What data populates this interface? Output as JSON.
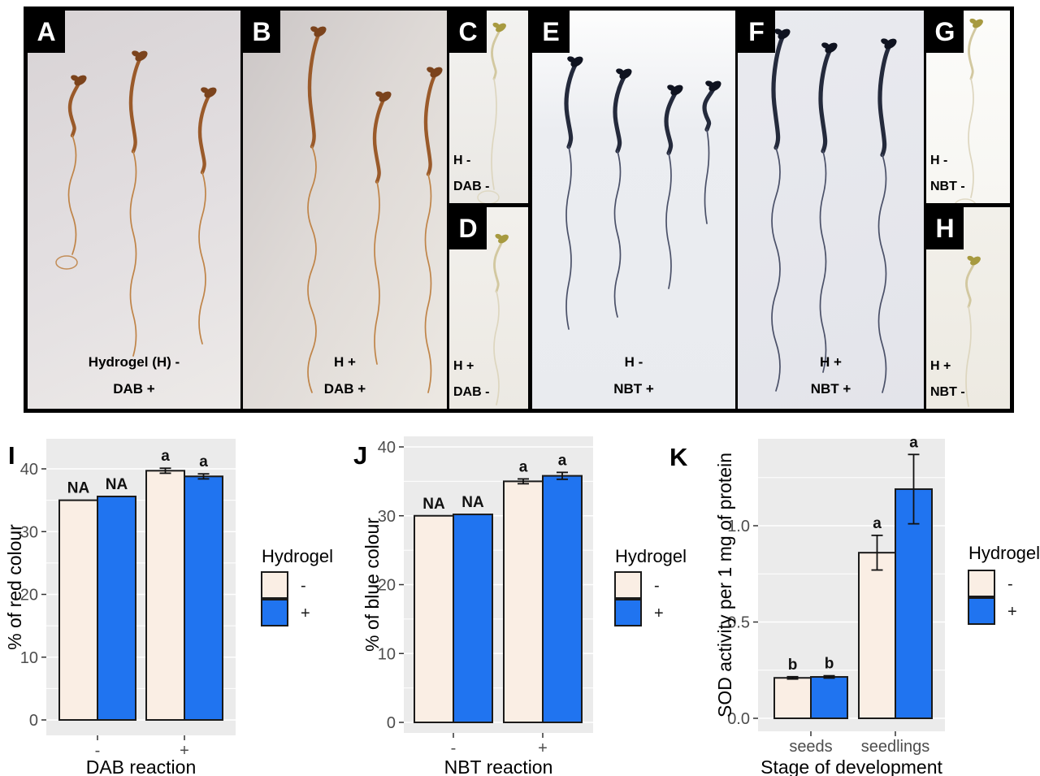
{
  "figure_panels": [
    {
      "letter": "A",
      "caption": [
        "Hydrogel (H) -",
        "DAB +"
      ]
    },
    {
      "letter": "B",
      "caption": [
        "H +",
        "DAB +"
      ]
    },
    {
      "letter": "C",
      "caption": [
        "H -",
        "DAB -"
      ]
    },
    {
      "letter": "D",
      "caption": [
        "H +",
        "DAB -"
      ]
    },
    {
      "letter": "E",
      "caption": [
        "H -",
        "NBT +"
      ]
    },
    {
      "letter": "F",
      "caption": [
        "H +",
        "NBT +"
      ]
    },
    {
      "letter": "G",
      "caption": [
        "H -",
        "NBT -"
      ]
    },
    {
      "letter": "H",
      "caption": [
        "H +",
        "NBT -"
      ]
    }
  ],
  "colors": {
    "hydrogel_minus": "#faeee4",
    "hydrogel_plus": "#2074f0",
    "chart_panel_bg": "#ebebeb",
    "gridline": "#ffffff",
    "bar_outline": "#1a1a1a"
  },
  "chart_data": [
    {
      "type": "bar",
      "panel_label": "I",
      "title": "",
      "xlabel": "DAB reaction",
      "ylabel": "% of red colour",
      "categories": [
        "-",
        "+"
      ],
      "series": [
        {
          "name": "-",
          "color": "#faeee4",
          "values": [
            35.0,
            39.7
          ],
          "errors": [
            null,
            0.4
          ],
          "bar_labels": [
            "NA",
            "a"
          ]
        },
        {
          "name": "+",
          "color": "#2074f0",
          "values": [
            35.6,
            38.8
          ],
          "errors": [
            null,
            0.4
          ],
          "bar_labels": [
            "NA",
            "a"
          ]
        }
      ],
      "yticks": [
        0,
        10,
        20,
        30,
        40
      ],
      "ytick_labels": [
        "0",
        "10",
        "20",
        "30",
        "40"
      ],
      "minor_ticks": [
        5,
        15,
        25,
        35
      ],
      "ylim": [
        -2.5,
        44.8
      ],
      "grid": true,
      "legend_title": "Hydrogel",
      "legend_labels": [
        "-",
        "+"
      ],
      "legend_position": "right"
    },
    {
      "type": "bar",
      "panel_label": "J",
      "title": "",
      "xlabel": "NBT reaction",
      "ylabel": "% of blue colour",
      "categories": [
        "-",
        "+"
      ],
      "series": [
        {
          "name": "-",
          "color": "#faeee4",
          "values": [
            30.0,
            35.0
          ],
          "errors": [
            null,
            0.35
          ],
          "bar_labels": [
            "NA",
            "a"
          ]
        },
        {
          "name": "+",
          "color": "#2074f0",
          "values": [
            30.2,
            35.8
          ],
          "errors": [
            null,
            0.5
          ],
          "bar_labels": [
            "NA",
            "a"
          ]
        }
      ],
      "yticks": [
        0,
        10,
        20,
        30,
        40
      ],
      "ytick_labels": [
        "0",
        "10",
        "20",
        "30",
        "40"
      ],
      "minor_ticks": [
        5,
        15,
        25,
        35
      ],
      "ylim": [
        -1.55,
        41.6
      ],
      "grid": true,
      "legend_title": "Hydrogel",
      "legend_labels": [
        "-",
        "+"
      ],
      "legend_position": "right"
    },
    {
      "type": "bar",
      "panel_label": "K",
      "title": "",
      "xlabel": "Stage of development",
      "ylabel": "SOD activity per 1 mg of protein",
      "categories": [
        "seeds",
        "seedlings"
      ],
      "series": [
        {
          "name": "-",
          "color": "#faeee4",
          "values": [
            0.21,
            0.86
          ],
          "errors": [
            0.006,
            0.09
          ],
          "bar_labels": [
            "b",
            "a"
          ]
        },
        {
          "name": "+",
          "color": "#2074f0",
          "values": [
            0.215,
            1.19
          ],
          "errors": [
            0.006,
            0.18
          ],
          "bar_labels": [
            "b",
            "a"
          ]
        }
      ],
      "yticks": [
        0,
        0.5,
        1.0
      ],
      "ytick_labels": [
        "0.0",
        "0.5",
        "1.0"
      ],
      "minor_ticks": [
        0.25,
        0.75,
        1.25
      ],
      "ylim": [
        -0.07,
        1.45
      ],
      "grid": true,
      "legend_title": "Hydrogel",
      "legend_labels": [
        "-",
        "+"
      ],
      "legend_position": "right"
    }
  ]
}
